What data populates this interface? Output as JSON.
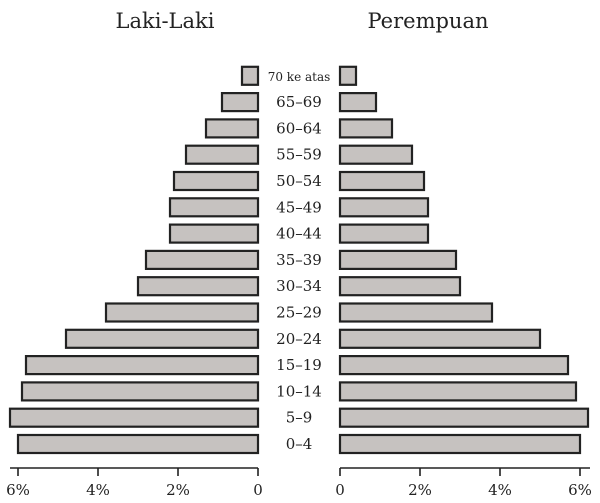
{
  "chart_data": {
    "type": "bar",
    "orientation": "horizontal",
    "subtype": "population-pyramid",
    "title_left": "Laki-Laki",
    "title_right": "Perempuan",
    "categories": [
      "0–4",
      "5–9",
      "10–14",
      "15–19",
      "20–24",
      "25–29",
      "30–34",
      "35–39",
      "40–44",
      "45–49",
      "50–54",
      "55–59",
      "60–64",
      "65–69",
      "70 ke atas"
    ],
    "series": [
      {
        "name": "Laki-Laki",
        "values": [
          6.0,
          6.2,
          5.9,
          5.8,
          4.8,
          3.8,
          3.0,
          2.8,
          2.2,
          2.2,
          2.1,
          1.8,
          1.3,
          0.9,
          0.4
        ]
      },
      {
        "name": "Perempuan",
        "values": [
          6.0,
          6.2,
          5.9,
          5.7,
          5.0,
          3.8,
          3.0,
          2.9,
          2.2,
          2.2,
          2.1,
          1.8,
          1.3,
          0.9,
          0.4
        ]
      }
    ],
    "xlim": [
      0,
      6
    ],
    "ticks_left": [
      "6%",
      "4%",
      "2%",
      "0"
    ],
    "ticks_right": [
      "0",
      "2%",
      "4%",
      "6%"
    ],
    "grid": false,
    "legend": "none"
  }
}
